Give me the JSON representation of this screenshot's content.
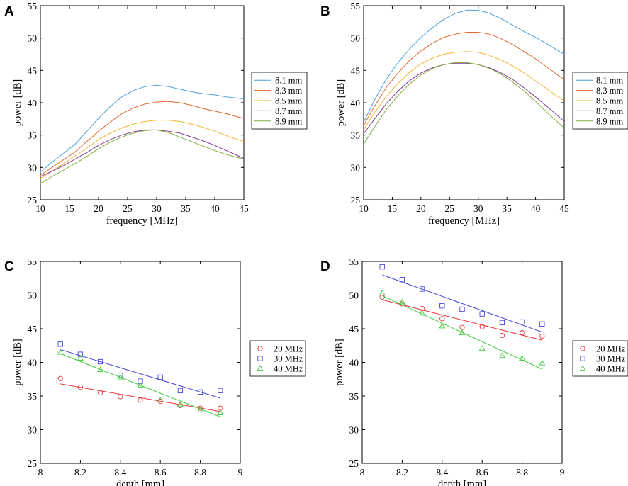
{
  "chart_data": [
    {
      "panel": "A",
      "type": "line",
      "xlabel": "frequency [MHz]",
      "ylabel": "power [dB]",
      "xlim": [
        10,
        45
      ],
      "ylim": [
        25,
        55
      ],
      "xticks": [
        10,
        15,
        20,
        25,
        30,
        35,
        40,
        45
      ],
      "yticks": [
        25,
        30,
        35,
        40,
        45,
        50,
        55
      ],
      "legend_position": "right",
      "series": [
        {
          "name": "8.1 mm",
          "color": "#4c9fd8",
          "x": [
            10,
            12,
            14,
            16,
            18,
            20,
            22,
            24,
            26,
            28,
            30,
            32,
            34,
            36,
            38,
            40,
            42,
            44,
            45
          ],
          "y": [
            29.3,
            30.8,
            32.2,
            33.6,
            35.6,
            37.6,
            39.4,
            40.9,
            41.9,
            42.5,
            42.7,
            42.5,
            42.1,
            41.7,
            41.4,
            41.2,
            40.9,
            40.7,
            40.6
          ]
        },
        {
          "name": "8.3 mm",
          "color": "#e0682e",
          "x": [
            10,
            12,
            14,
            16,
            18,
            20,
            22,
            24,
            26,
            28,
            30,
            32,
            34,
            36,
            38,
            40,
            42,
            44,
            45
          ],
          "y": [
            28.8,
            30.0,
            31.2,
            32.4,
            34.0,
            35.6,
            37.0,
            38.3,
            39.2,
            39.8,
            40.1,
            40.2,
            40.0,
            39.6,
            39.1,
            38.7,
            38.3,
            37.8,
            37.6
          ]
        },
        {
          "name": "8.5 mm",
          "color": "#f2b632",
          "x": [
            10,
            12,
            14,
            16,
            18,
            20,
            22,
            24,
            26,
            28,
            30,
            32,
            34,
            36,
            38,
            40,
            42,
            44,
            45
          ],
          "y": [
            28.3,
            29.4,
            30.6,
            31.8,
            33.0,
            34.3,
            35.3,
            36.1,
            36.7,
            37.1,
            37.3,
            37.3,
            37.1,
            36.7,
            36.2,
            35.6,
            34.9,
            34.3,
            34.0
          ]
        },
        {
          "name": "8.7 mm",
          "color": "#7e3a92",
          "x": [
            10,
            12,
            14,
            16,
            18,
            20,
            22,
            24,
            26,
            28,
            30,
            32,
            34,
            36,
            38,
            40,
            42,
            44,
            45
          ],
          "y": [
            28.6,
            29.4,
            30.3,
            31.3,
            32.3,
            33.4,
            34.3,
            35.0,
            35.5,
            35.8,
            35.8,
            35.6,
            35.3,
            34.7,
            34.1,
            33.4,
            32.6,
            31.8,
            31.4
          ]
        },
        {
          "name": "8.9 mm",
          "color": "#7fad3e",
          "x": [
            10,
            12,
            14,
            16,
            18,
            20,
            22,
            24,
            26,
            28,
            30,
            32,
            34,
            36,
            38,
            40,
            42,
            44,
            45
          ],
          "y": [
            27.5,
            28.6,
            29.6,
            30.6,
            31.7,
            32.9,
            33.9,
            34.7,
            35.3,
            35.7,
            35.8,
            35.4,
            34.7,
            34.0,
            33.3,
            32.6,
            32.0,
            31.5,
            31.3
          ]
        }
      ]
    },
    {
      "panel": "B",
      "type": "line",
      "xlabel": "frequency [MHz]",
      "ylabel": "power [dB]",
      "xlim": [
        10,
        45
      ],
      "ylim": [
        25,
        55
      ],
      "xticks": [
        10,
        15,
        20,
        25,
        30,
        35,
        40,
        45
      ],
      "yticks": [
        25,
        30,
        35,
        40,
        45,
        50,
        55
      ],
      "legend_position": "right",
      "series": [
        {
          "name": "8.1 mm",
          "color": "#4c9fd8",
          "x": [
            10,
            12,
            14,
            16,
            18,
            20,
            22,
            24,
            26,
            28,
            30,
            32,
            34,
            36,
            38,
            40,
            42,
            44,
            45
          ],
          "y": [
            37.0,
            40.6,
            43.7,
            46.2,
            48.3,
            50.1,
            51.6,
            52.9,
            53.8,
            54.3,
            54.3,
            53.8,
            53.0,
            52.0,
            51.0,
            50.1,
            49.1,
            48.0,
            47.5
          ]
        },
        {
          "name": "8.3 mm",
          "color": "#e0682e",
          "x": [
            10,
            12,
            14,
            16,
            18,
            20,
            22,
            24,
            26,
            28,
            30,
            32,
            34,
            36,
            38,
            40,
            42,
            44,
            45
          ],
          "y": [
            36.5,
            39.6,
            42.4,
            44.6,
            46.5,
            48.0,
            49.2,
            50.1,
            50.6,
            50.9,
            50.9,
            50.6,
            49.9,
            49.0,
            47.9,
            46.8,
            45.5,
            44.2,
            43.6
          ]
        },
        {
          "name": "8.5 mm",
          "color": "#f2b632",
          "x": [
            10,
            12,
            14,
            16,
            18,
            20,
            22,
            24,
            26,
            28,
            30,
            32,
            34,
            36,
            38,
            40,
            42,
            44,
            45
          ],
          "y": [
            35.8,
            38.6,
            41.0,
            43.0,
            44.7,
            46.0,
            46.9,
            47.5,
            47.8,
            47.9,
            47.8,
            47.3,
            46.6,
            45.7,
            44.6,
            43.4,
            42.1,
            40.9,
            40.3
          ]
        },
        {
          "name": "8.7 mm",
          "color": "#7e3a92",
          "x": [
            10,
            12,
            14,
            16,
            18,
            20,
            22,
            24,
            26,
            28,
            30,
            32,
            34,
            36,
            38,
            40,
            42,
            44,
            45
          ],
          "y": [
            35.2,
            37.6,
            39.9,
            41.8,
            43.4,
            44.6,
            45.4,
            45.9,
            46.1,
            46.1,
            45.9,
            45.4,
            44.6,
            43.6,
            42.3,
            40.9,
            39.4,
            37.9,
            37.1
          ]
        },
        {
          "name": "8.9 mm",
          "color": "#7fad3e",
          "x": [
            10,
            12,
            14,
            16,
            18,
            20,
            22,
            24,
            26,
            28,
            30,
            32,
            34,
            36,
            38,
            40,
            42,
            44,
            45
          ],
          "y": [
            33.6,
            36.4,
            39.0,
            41.1,
            42.9,
            44.3,
            45.3,
            45.9,
            46.2,
            46.2,
            45.9,
            45.3,
            44.4,
            43.2,
            41.8,
            40.2,
            38.5,
            36.9,
            36.1
          ]
        }
      ]
    },
    {
      "panel": "C",
      "type": "scatter",
      "xlabel": "depth [mm]",
      "ylabel": "power [dB]",
      "xlim": [
        8,
        9
      ],
      "ylim": [
        25,
        55
      ],
      "xticks": [
        8,
        8.2,
        8.4,
        8.6,
        8.8,
        9
      ],
      "yticks": [
        25,
        30,
        35,
        40,
        45,
        50,
        55
      ],
      "legend_position": "right",
      "series": [
        {
          "name": "20 MHz",
          "marker": "circle",
          "color": "#e8343a",
          "x": [
            8.1,
            8.2,
            8.3,
            8.4,
            8.5,
            8.6,
            8.7,
            8.8,
            8.9
          ],
          "y": [
            37.6,
            36.3,
            35.5,
            34.9,
            34.4,
            34.2,
            33.6,
            33.2,
            33.2
          ],
          "fit": [
            [
              8.1,
              36.8
            ],
            [
              8.9,
              32.7
            ]
          ]
        },
        {
          "name": "30 MHz",
          "marker": "square",
          "color": "#4444d8",
          "x": [
            8.1,
            8.2,
            8.3,
            8.4,
            8.5,
            8.6,
            8.7,
            8.8,
            8.9
          ],
          "y": [
            42.7,
            41.2,
            40.1,
            38.1,
            37.2,
            37.8,
            35.8,
            35.6,
            35.8
          ],
          "fit": [
            [
              8.1,
              41.9
            ],
            [
              8.9,
              34.7
            ]
          ]
        },
        {
          "name": "40 MHz",
          "marker": "triangle",
          "color": "#3ccc3c",
          "x": [
            8.1,
            8.2,
            8.3,
            8.4,
            8.5,
            8.6,
            8.7,
            8.8,
            8.9
          ],
          "y": [
            41.5,
            40.6,
            38.9,
            37.8,
            36.6,
            34.4,
            33.8,
            32.9,
            32.5
          ],
          "fit": [
            [
              8.1,
              41.3
            ],
            [
              8.9,
              31.9
            ]
          ]
        }
      ]
    },
    {
      "panel": "D",
      "type": "scatter",
      "xlabel": "depth [mm]",
      "ylabel": "power [dB]",
      "xlim": [
        8,
        9
      ],
      "ylim": [
        25,
        55
      ],
      "xticks": [
        8,
        8.2,
        8.4,
        8.6,
        8.8,
        9
      ],
      "yticks": [
        25,
        30,
        35,
        40,
        45,
        50,
        55
      ],
      "legend_position": "right",
      "series": [
        {
          "name": "20 MHz",
          "marker": "circle",
          "color": "#e8343a",
          "x": [
            8.1,
            8.2,
            8.3,
            8.4,
            8.5,
            8.6,
            8.7,
            8.8,
            8.9
          ],
          "y": [
            49.7,
            48.7,
            48.0,
            46.5,
            45.2,
            45.3,
            44.0,
            44.4,
            43.9
          ],
          "fit": [
            [
              8.1,
              49.3
            ],
            [
              8.9,
              43.3
            ]
          ]
        },
        {
          "name": "30 MHz",
          "marker": "square",
          "color": "#4444d8",
          "x": [
            8.1,
            8.2,
            8.3,
            8.4,
            8.5,
            8.6,
            8.7,
            8.8,
            8.9
          ],
          "y": [
            54.2,
            52.3,
            50.9,
            48.4,
            47.9,
            47.2,
            45.9,
            46.0,
            45.7
          ],
          "fit": [
            [
              8.1,
              53.0
            ],
            [
              8.9,
              44.5
            ]
          ]
        },
        {
          "name": "40 MHz",
          "marker": "triangle",
          "color": "#3ccc3c",
          "x": [
            8.1,
            8.2,
            8.3,
            8.4,
            8.5,
            8.6,
            8.7,
            8.8,
            8.9
          ],
          "y": [
            50.3,
            49.0,
            47.3,
            45.4,
            44.4,
            42.1,
            41.0,
            40.6,
            39.9
          ],
          "fit": [
            [
              8.1,
              49.9
            ],
            [
              8.9,
              39.0
            ]
          ]
        }
      ]
    }
  ]
}
